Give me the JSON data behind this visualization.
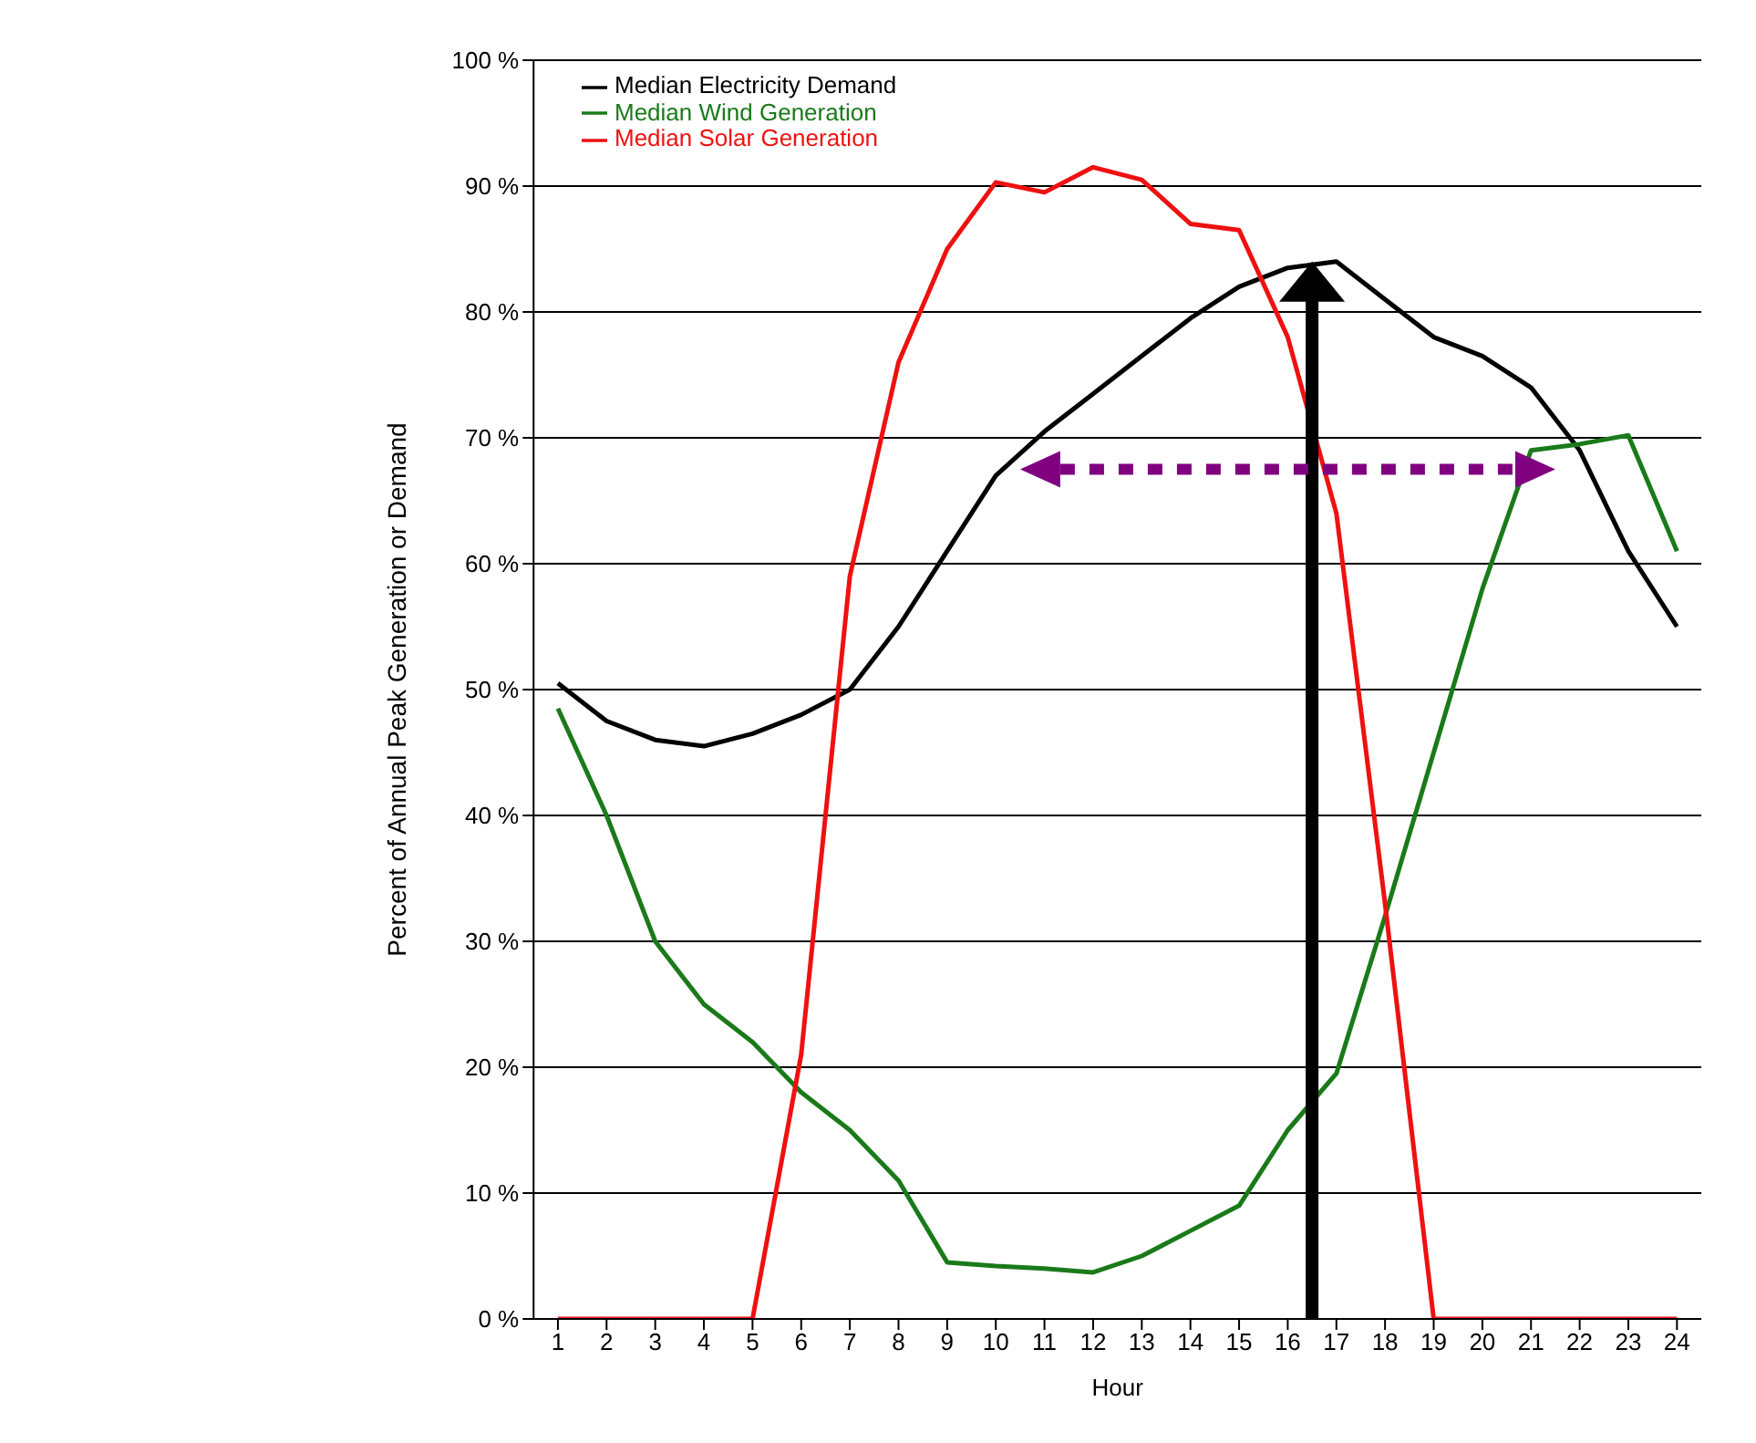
{
  "chart_data": {
    "type": "line",
    "xlabel": "Hour",
    "ylabel": "Percent of Annual Peak Generation or Demand",
    "x": [
      1,
      2,
      3,
      4,
      5,
      6,
      7,
      8,
      9,
      10,
      11,
      12,
      13,
      14,
      15,
      16,
      17,
      18,
      19,
      20,
      21,
      22,
      23,
      24
    ],
    "xlim": [
      0.5,
      24.5
    ],
    "xticks": [
      1,
      2,
      3,
      4,
      5,
      6,
      7,
      8,
      9,
      10,
      11,
      12,
      13,
      14,
      15,
      16,
      17,
      18,
      19,
      20,
      21,
      22,
      23,
      24
    ],
    "ylim": [
      0,
      100
    ],
    "yticks": [
      {
        "value": 0,
        "label": "0 %"
      },
      {
        "value": 10,
        "label": "10 %"
      },
      {
        "value": 20,
        "label": "20 %"
      },
      {
        "value": 30,
        "label": "30 %"
      },
      {
        "value": 40,
        "label": "40 %"
      },
      {
        "value": 50,
        "label": "50 %"
      },
      {
        "value": 60,
        "label": "60 %"
      },
      {
        "value": 70,
        "label": "70 %"
      },
      {
        "value": 80,
        "label": "80 %"
      },
      {
        "value": 90,
        "label": "90 %"
      },
      {
        "value": 100,
        "label": "100 %"
      }
    ],
    "series": [
      {
        "name": "Median Electricity Demand",
        "color": "#000000",
        "values": [
          50.5,
          47.5,
          46,
          45.5,
          46.5,
          48,
          50,
          55,
          61,
          67,
          70.5,
          73.5,
          76.5,
          79.5,
          82,
          83.5,
          84,
          81,
          78,
          76.5,
          74,
          69,
          61,
          55
        ]
      },
      {
        "name": "Median Wind Generation",
        "color": "#1a7a1a",
        "values": [
          48.5,
          40,
          30,
          25,
          22,
          18,
          15,
          11,
          4.5,
          4.2,
          4,
          3.7,
          5,
          7,
          9,
          15,
          19.5,
          32,
          45,
          58,
          69,
          69.5,
          70.2,
          61
        ]
      },
      {
        "name": "Median Solar Generation",
        "color": "#ee1111",
        "values": [
          0,
          0,
          0,
          0,
          0,
          21,
          59,
          76,
          85,
          90.3,
          89.5,
          91.5,
          90.5,
          87,
          86.5,
          78,
          64,
          33,
          0,
          0,
          0,
          0,
          0,
          0
        ]
      }
    ],
    "grid": "y",
    "legend": "top left",
    "marker": "none",
    "line_style": "solid"
  }
}
